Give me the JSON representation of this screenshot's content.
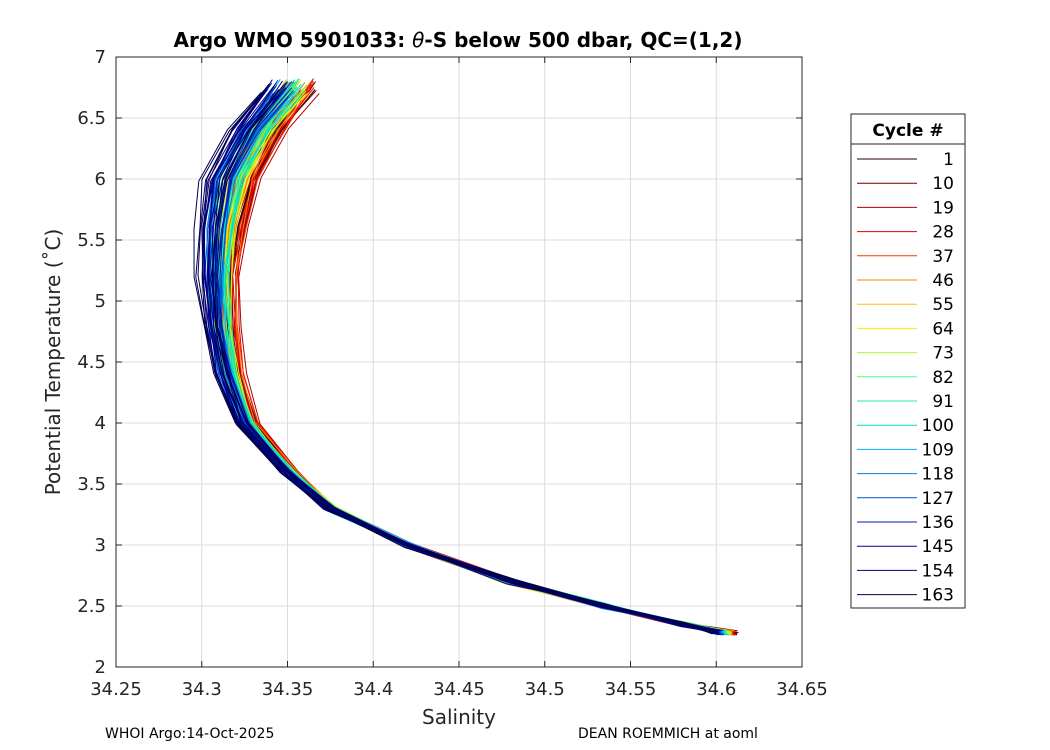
{
  "chart_data": {
    "type": "line",
    "title_prefix": "Argo WMO 5901033: ",
    "title_symbol": "θ",
    "title_suffix": "-S below 500 dbar,  QC=(1,2)",
    "xlabel": "Salinity",
    "ylabel": "Potential Temperature (˚C)",
    "xlim": [
      34.25,
      34.65
    ],
    "ylim": [
      2,
      7
    ],
    "xticks": [
      "34.25",
      "34.3",
      "34.35",
      "34.4",
      "34.45",
      "34.5",
      "34.55",
      "34.6",
      "34.65"
    ],
    "yticks": [
      "2",
      "2.5",
      "3",
      "3.5",
      "4",
      "4.5",
      "5",
      "5.5",
      "6",
      "6.5",
      "7"
    ],
    "grid": true,
    "legend_position": "outside-right",
    "legend_title": "Cycle #",
    "legend": [
      {
        "label": "1",
        "color": "#2b0000"
      },
      {
        "label": "10",
        "color": "#6e0000"
      },
      {
        "label": "19",
        "color": "#b00000"
      },
      {
        "label": "28",
        "color": "#e00000"
      },
      {
        "label": "37",
        "color": "#ff3000"
      },
      {
        "label": "46",
        "color": "#ff8000"
      },
      {
        "label": "55",
        "color": "#ffc000"
      },
      {
        "label": "64",
        "color": "#f0f000"
      },
      {
        "label": "73",
        "color": "#a0ff30"
      },
      {
        "label": "82",
        "color": "#50ff70"
      },
      {
        "label": "91",
        "color": "#20f0a0"
      },
      {
        "label": "100",
        "color": "#00e0d0"
      },
      {
        "label": "109",
        "color": "#00b0ff"
      },
      {
        "label": "118",
        "color": "#0080e0"
      },
      {
        "label": "127",
        "color": "#0050d0"
      },
      {
        "label": "136",
        "color": "#0020b0"
      },
      {
        "label": "145",
        "color": "#000090"
      },
      {
        "label": "154",
        "color": "#000070"
      },
      {
        "label": "163",
        "color": "#000050"
      }
    ],
    "series_profile": {
      "theta": [
        2.28,
        2.35,
        2.5,
        2.7,
        3.0,
        3.3,
        3.6,
        4.0,
        4.4,
        4.8,
        5.2,
        5.6,
        6.0,
        6.4,
        6.75
      ],
      "salinity": [
        34.6,
        34.58,
        34.535,
        34.48,
        34.42,
        34.375,
        34.35,
        34.325,
        34.315,
        34.31,
        34.308,
        34.31,
        34.315,
        34.33,
        34.35
      ]
    }
  },
  "footer": {
    "left": "WHOI Argo:14-Oct-2025",
    "right": "DEAN ROEMMICH at aoml"
  }
}
